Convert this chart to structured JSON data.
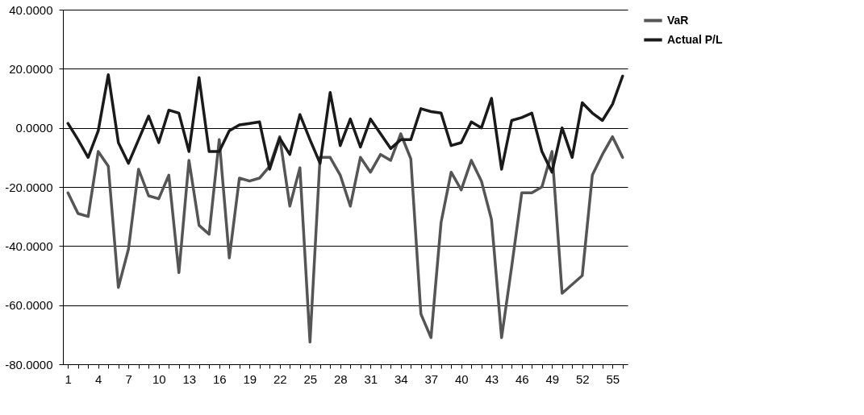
{
  "chart_data": {
    "type": "line",
    "categories": [
      "1",
      null,
      null,
      "4",
      null,
      null,
      "7",
      null,
      null,
      "10",
      null,
      null,
      "13",
      null,
      null,
      "16",
      null,
      null,
      "19",
      null,
      null,
      "22",
      null,
      null,
      "25",
      null,
      null,
      "28",
      null,
      null,
      "31",
      null,
      null,
      "34",
      null,
      null,
      "37",
      null,
      null,
      "40",
      null,
      null,
      "43",
      null,
      null,
      "46",
      null,
      null,
      "49",
      null,
      null,
      "52",
      null,
      null,
      "55",
      null
    ],
    "series": [
      {
        "name": "VaR",
        "color": "#555555",
        "values": [
          -22,
          -29,
          -30,
          -8,
          -13,
          -54,
          -41,
          -14,
          -23,
          -24,
          -16,
          -49,
          -11,
          -33,
          -36,
          -4,
          -44,
          -17,
          -18,
          -17,
          -13,
          -3,
          -26.5,
          -13.5,
          -72.5,
          -10,
          -10,
          -16,
          -26.5,
          -10,
          -15,
          -9,
          -11,
          -2,
          -10.5,
          -63,
          -71,
          -32,
          -15,
          -21,
          -11,
          -18,
          -31,
          -71,
          -47,
          -22,
          -22,
          -20,
          -8,
          -56,
          -53,
          -50,
          -16,
          -9,
          -3,
          -10
        ]
      },
      {
        "name": "Actual P/L",
        "color": "#1a1a1a",
        "values": [
          1.5,
          -4,
          -10,
          -1,
          18,
          -5,
          -12,
          -4,
          4,
          -5,
          6,
          5,
          -8,
          17,
          -8,
          -8,
          -1,
          1,
          1.5,
          2,
          -14,
          -3.5,
          -9,
          4.5,
          -4,
          -12,
          12,
          -6,
          3,
          -6.5,
          3,
          -2,
          -7,
          -4,
          -4,
          6.5,
          5.5,
          5,
          -6,
          -5,
          2,
          0,
          10,
          -14,
          2.5,
          3.5,
          5,
          -8,
          -15,
          0,
          -10,
          8.5,
          5,
          2.5,
          8,
          17.5
        ]
      }
    ],
    "ylim": [
      -80,
      40
    ],
    "yticks": [
      {
        "value": -80,
        "label": "-80.0000"
      },
      {
        "value": -60,
        "label": "-60.0000"
      },
      {
        "value": -40,
        "label": "-40.0000"
      },
      {
        "value": -20,
        "label": "-20.0000"
      },
      {
        "value": 0,
        "label": "0.0000"
      },
      {
        "value": 20,
        "label": "20.0000"
      },
      {
        "value": 40,
        "label": "40.0000"
      }
    ],
    "grid": "y",
    "legend": "right",
    "line_style": "solid",
    "marker": "none"
  }
}
